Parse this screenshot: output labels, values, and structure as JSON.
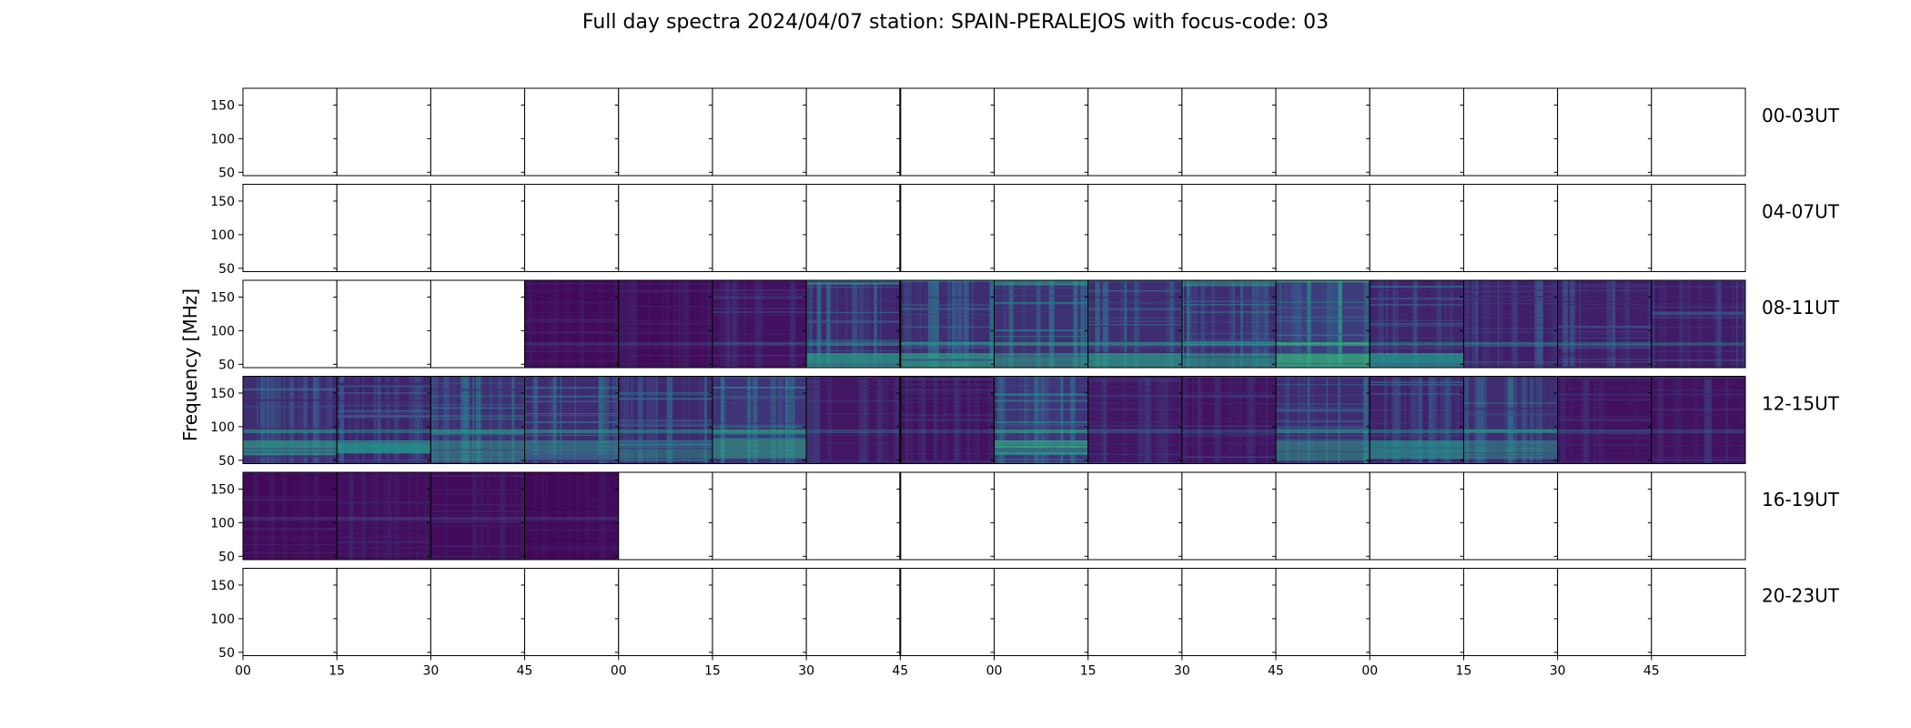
{
  "chart_data": {
    "type": "heatmap",
    "title": "Full day spectra 2024/04/07 station: SPAIN-PERALEJOS with focus-code: 03",
    "ylabel": "Frequency [MHz]",
    "xlabel": "",
    "ylim": [
      45,
      175
    ],
    "yticks": [
      "150",
      "100",
      "50"
    ],
    "ytick_values": [
      150,
      100,
      50
    ],
    "xtick_labels": [
      "00",
      "15",
      "30",
      "45",
      "00",
      "15",
      "30",
      "45",
      "00",
      "15",
      "30",
      "45",
      "00",
      "15",
      "30",
      "45"
    ],
    "colormap": "viridis",
    "colors": {
      "low": "#440154",
      "mid": "#31688e",
      "high": "#35b779",
      "frame": "#000000"
    },
    "rows": [
      {
        "label": "00-03UT",
        "observed": [
          0,
          0,
          0,
          0,
          0,
          0,
          0,
          0,
          0,
          0,
          0,
          0,
          0,
          0,
          0,
          0
        ]
      },
      {
        "label": "04-07UT",
        "observed": [
          0,
          0,
          0,
          0,
          0,
          0,
          0,
          0,
          0,
          0,
          0,
          0,
          0,
          0,
          0,
          0
        ]
      },
      {
        "label": "08-11UT",
        "observed": [
          0,
          0,
          0,
          1,
          1,
          1,
          1,
          1,
          1,
          1,
          1,
          1,
          1,
          1,
          1,
          1
        ]
      },
      {
        "label": "12-15UT",
        "observed": [
          1,
          1,
          1,
          1,
          1,
          1,
          1,
          1,
          1,
          1,
          1,
          1,
          1,
          1,
          1,
          1
        ]
      },
      {
        "label": "16-19UT",
        "observed": [
          1,
          1,
          1,
          1,
          0,
          0,
          0,
          0,
          0,
          0,
          0,
          0,
          0,
          0,
          0,
          0
        ]
      },
      {
        "label": "20-23UT",
        "observed": [
          0,
          0,
          0,
          0,
          0,
          0,
          0,
          0,
          0,
          0,
          0,
          0,
          0,
          0,
          0,
          0
        ]
      }
    ],
    "panel_intensity": [
      [
        0,
        0,
        0,
        0,
        0,
        0,
        0,
        0,
        0,
        0,
        0,
        0,
        0,
        0,
        0,
        0
      ],
      [
        0,
        0,
        0,
        0,
        0,
        0,
        0,
        0,
        0,
        0,
        0,
        0,
        0,
        0,
        0,
        0
      ],
      [
        0,
        0,
        0,
        0.1,
        0.12,
        0.2,
        0.45,
        0.5,
        0.55,
        0.5,
        0.5,
        0.7,
        0.4,
        0.35,
        0.35,
        0.3
      ],
      [
        0.5,
        0.4,
        0.55,
        0.5,
        0.45,
        0.6,
        0.25,
        0.2,
        0.6,
        0.25,
        0.2,
        0.5,
        0.4,
        0.5,
        0.2,
        0.2
      ],
      [
        0.1,
        0.15,
        0.12,
        0.08,
        0,
        0,
        0,
        0,
        0,
        0,
        0,
        0,
        0,
        0,
        0,
        0
      ],
      [
        0,
        0,
        0,
        0,
        0,
        0,
        0,
        0,
        0,
        0,
        0,
        0,
        0,
        0,
        0,
        0
      ]
    ]
  }
}
